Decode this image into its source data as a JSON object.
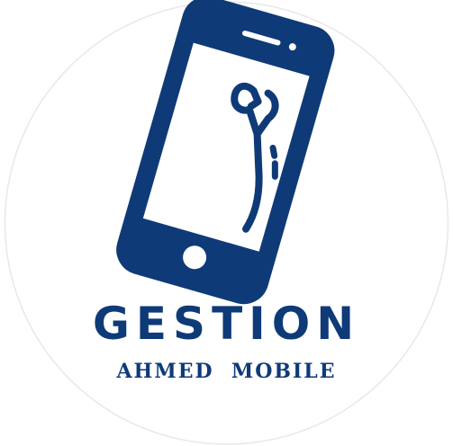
{
  "logo": {
    "title": "GESTION",
    "subtitle": "AHMED  MOBILE",
    "icon": "phone-repair-wrench-icon",
    "colors": {
      "brand": "#0f3a78",
      "background": "#ffffff",
      "badge_border": "#e6e6e6"
    }
  }
}
